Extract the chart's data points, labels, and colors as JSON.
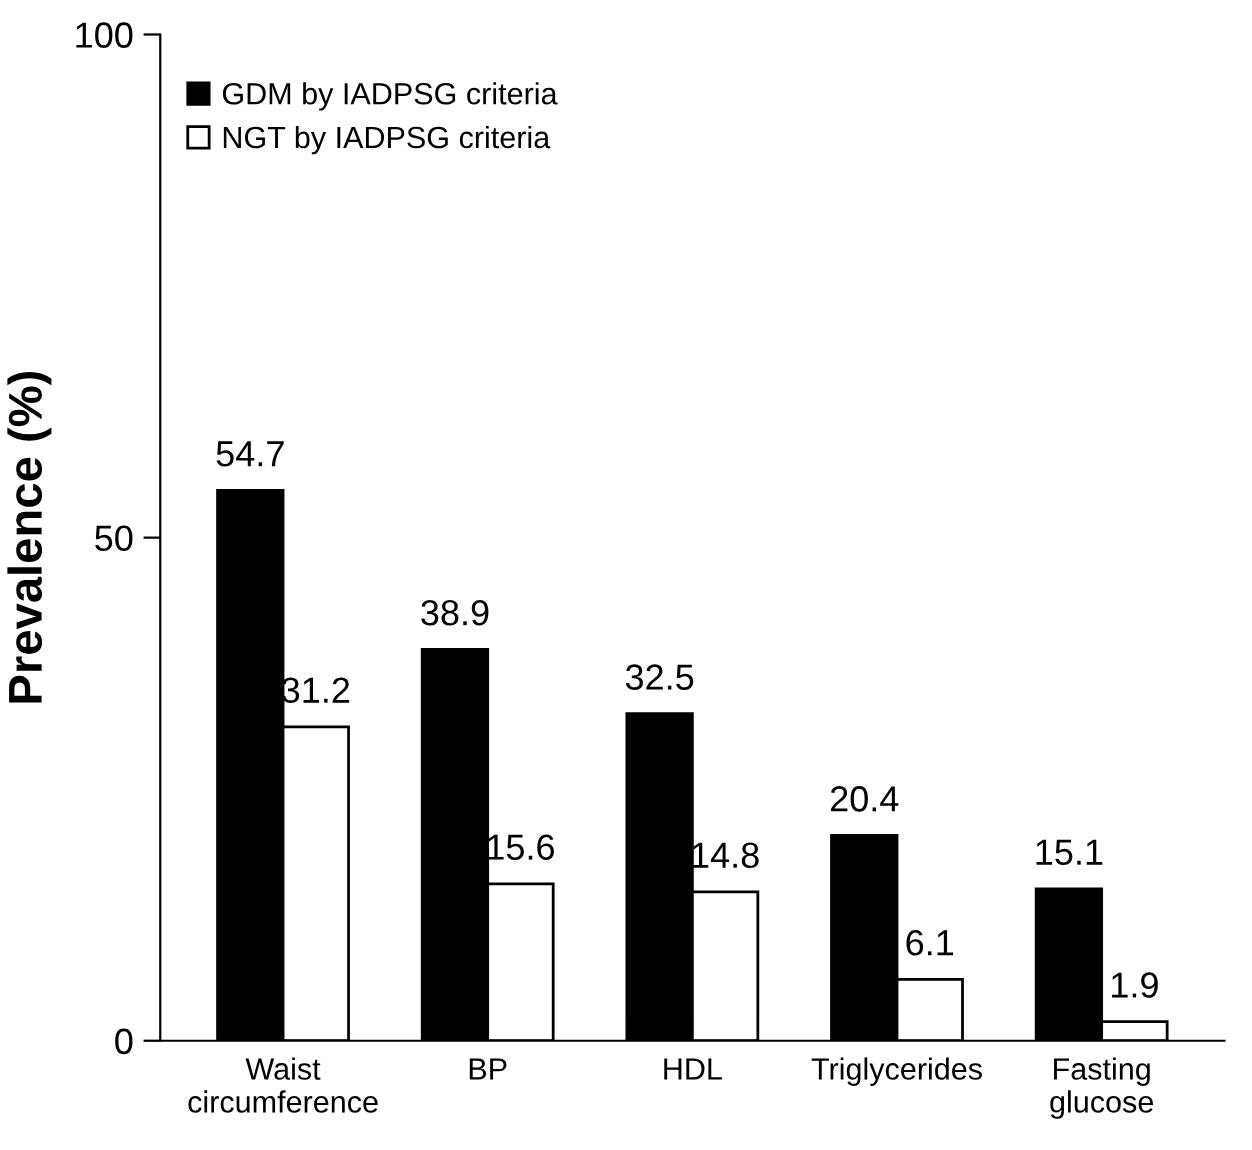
{
  "chart_data": {
    "type": "bar",
    "ylabel": "Prevalence (%)",
    "categories": [
      "Waist\ncircumference",
      "BP",
      "HDL",
      "Triglycerides",
      "Fasting\nglucose"
    ],
    "series": [
      {
        "name": "GDM by IADPSG criteria",
        "color": "#000000",
        "values": [
          54.7,
          38.9,
          32.5,
          20.4,
          15.1
        ]
      },
      {
        "name": "NGT by IADPSG criteria",
        "color": "#ffffff",
        "values": [
          31.2,
          15.6,
          14.8,
          6.1,
          1.9
        ]
      }
    ],
    "ylim": [
      0,
      100
    ],
    "yticks": [
      0,
      50,
      100
    ],
    "data_labels": true,
    "legend": "top left",
    "grid": false
  }
}
